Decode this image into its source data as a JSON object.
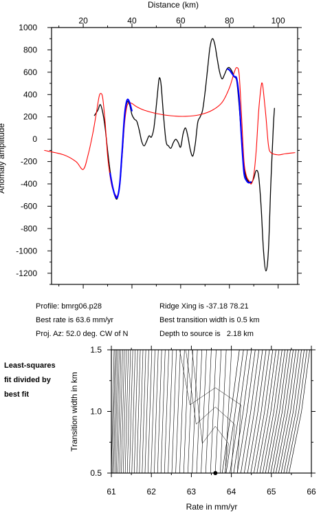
{
  "top_chart": {
    "xlabel": "Distance (km)",
    "ylabel": "Anomaly amplitude",
    "xlim": [
      7,
      108
    ],
    "ylim": [
      -1300,
      1000
    ],
    "x_ticks": [
      "20",
      "40",
      "60",
      "80",
      "100"
    ],
    "y_ticks": [
      "1000",
      "800",
      "600",
      "400",
      "200",
      "0",
      "-200",
      "-400",
      "-600",
      "-800",
      "-1000",
      "-1200"
    ],
    "colors": {
      "observed": "#000000",
      "model": "#ff0000",
      "fit": "#0000ff"
    }
  },
  "info": {
    "profile": "Profile: bmrg06.p28",
    "best_rate": "Best rate is 63.6 mm/yr",
    "proj_az": "Proj. Az: 52.0 deg. CW of N",
    "ridge_xing": "Ridge Xing is -37.18 78.21",
    "best_width": "Best transition width is 0.5 km",
    "depth": "Depth to source is   2.18 km"
  },
  "side_note": "Least-squares fit divided by best fit",
  "bottom_chart": {
    "xlabel": "Rate in mm/yr",
    "ylabel": "Transition width in km",
    "xlim": [
      61,
      66
    ],
    "ylim": [
      0.5,
      1.5
    ],
    "x_ticks": [
      "61",
      "62",
      "63",
      "64",
      "65",
      "66"
    ],
    "y_ticks": [
      "1.5",
      "1.0",
      "0.5"
    ]
  },
  "chart_data": [
    {
      "type": "line",
      "xlabel": "Distance (km)",
      "ylabel": "Anomaly amplitude",
      "xlim": [
        7,
        108
      ],
      "ylim": [
        -1300,
        1000
      ],
      "series": [
        {
          "values": [
            [
              24.5,
              210
            ],
            [
              26,
              260
            ],
            [
              27,
              310
            ],
            [
              28,
              240
            ],
            [
              29,
              100
            ],
            [
              30,
              -100
            ],
            [
              31,
              -280
            ],
            [
              32,
              -420
            ],
            [
              33,
              -510
            ],
            [
              34,
              -530
            ],
            [
              35,
              -400
            ],
            [
              36,
              -100
            ],
            [
              37,
              200
            ],
            [
              38,
              330
            ],
            [
              39,
              310
            ],
            [
              40,
              220
            ],
            [
              41,
              180
            ],
            [
              42,
              160
            ],
            [
              43,
              80
            ],
            [
              44,
              -20
            ],
            [
              45,
              -60
            ],
            [
              46,
              -20
            ],
            [
              47,
              30
            ],
            [
              48,
              20
            ],
            [
              49,
              100
            ],
            [
              50,
              300
            ],
            [
              51,
              520
            ],
            [
              51.5,
              545
            ],
            [
              52,
              480
            ],
            [
              53,
              200
            ],
            [
              54,
              -20
            ],
            [
              55,
              -60
            ],
            [
              56,
              -80
            ],
            [
              57,
              -30
            ],
            [
              58,
              0
            ],
            [
              59,
              -30
            ],
            [
              60,
              -70
            ],
            [
              61,
              50
            ],
            [
              62,
              100
            ],
            [
              63,
              20
            ],
            [
              64,
              -100
            ],
            [
              65,
              -150
            ],
            [
              66,
              -40
            ],
            [
              67,
              150
            ],
            [
              68,
              200
            ],
            [
              69,
              260
            ],
            [
              70,
              420
            ],
            [
              71,
              620
            ],
            [
              72,
              820
            ],
            [
              73,
              900
            ],
            [
              74,
              850
            ],
            [
              75,
              720
            ],
            [
              76,
              600
            ],
            [
              77,
              540
            ],
            [
              78,
              580
            ],
            [
              79,
              630
            ],
            [
              80,
              640
            ],
            [
              81,
              610
            ],
            [
              82,
              560
            ],
            [
              83,
              520
            ],
            [
              84,
              300
            ],
            [
              85,
              0
            ],
            [
              86,
              -250
            ],
            [
              87,
              -350
            ],
            [
              88,
              -380
            ],
            [
              89,
              -390
            ],
            [
              90,
              -350
            ],
            [
              91,
              -280
            ],
            [
              92,
              -330
            ],
            [
              93,
              -600
            ],
            [
              94,
              -1000
            ],
            [
              95,
              -1180
            ],
            [
              96,
              -1000
            ],
            [
              97,
              -400
            ],
            [
              98,
              100
            ],
            [
              98.5,
              280
            ]
          ]
        },
        {
          "values": [
            [
              4,
              -100
            ],
            [
              12,
              -140
            ],
            [
              17,
              -200
            ],
            [
              20,
              -270
            ],
            [
              22,
              -140
            ],
            [
              24,
              60
            ],
            [
              25.5,
              250
            ],
            [
              26.5,
              380
            ],
            [
              27.2,
              410
            ],
            [
              28,
              370
            ],
            [
              29,
              150
            ],
            [
              30,
              -150
            ],
            [
              31,
              -330
            ],
            [
              32,
              -440
            ],
            [
              33,
              -490
            ],
            [
              34,
              -510
            ],
            [
              35,
              -420
            ],
            [
              36,
              -150
            ],
            [
              37,
              150
            ],
            [
              38,
              300
            ],
            [
              39,
              325
            ],
            [
              40,
              320
            ],
            [
              42,
              290
            ],
            [
              45,
              260
            ],
            [
              50,
              230
            ],
            [
              56,
              210
            ],
            [
              62,
              205
            ],
            [
              68,
              220
            ],
            [
              73,
              260
            ],
            [
              77,
              330
            ],
            [
              80,
              460
            ],
            [
              82,
              600
            ],
            [
              83,
              640
            ],
            [
              84,
              580
            ],
            [
              85,
              200
            ],
            [
              86,
              -200
            ],
            [
              87,
              -330
            ],
            [
              88,
              -370
            ],
            [
              89,
              -400
            ],
            [
              90,
              -320
            ],
            [
              91,
              -100
            ],
            [
              92,
              250
            ],
            [
              93,
              470
            ],
            [
              93.5,
              500
            ],
            [
              94,
              420
            ],
            [
              95,
              200
            ],
            [
              96,
              -50
            ],
            [
              97,
              -120
            ],
            [
              100,
              -140
            ],
            [
              103,
              -130
            ],
            [
              107,
              -120
            ]
          ]
        },
        {
          "values": [
            [
              31,
              -300
            ],
            [
              32,
              -420
            ],
            [
              33,
              -500
            ],
            [
              34,
              -520
            ],
            [
              35,
              -400
            ],
            [
              36,
              -100
            ],
            [
              37,
              220
            ],
            [
              38,
              350
            ],
            [
              39,
              330
            ],
            [
              40,
              250
            ],
            [
              79,
              630
            ],
            [
              80,
              620
            ],
            [
              81,
              590
            ],
            [
              82,
              560
            ],
            [
              83,
              540
            ],
            [
              84,
              360
            ],
            [
              85,
              0
            ],
            [
              86,
              -300
            ],
            [
              87,
              -370
            ],
            [
              88,
              -390
            ],
            [
              89,
              -380
            ]
          ]
        }
      ]
    },
    {
      "type": "line",
      "xlabel": "Rate in mm/yr",
      "ylabel": "Transition width in km",
      "xlim": [
        61,
        66
      ],
      "ylim": [
        0.5,
        1.5
      ],
      "points": [
        {
          "x": 63.6,
          "y": 0.5
        }
      ]
    }
  ]
}
